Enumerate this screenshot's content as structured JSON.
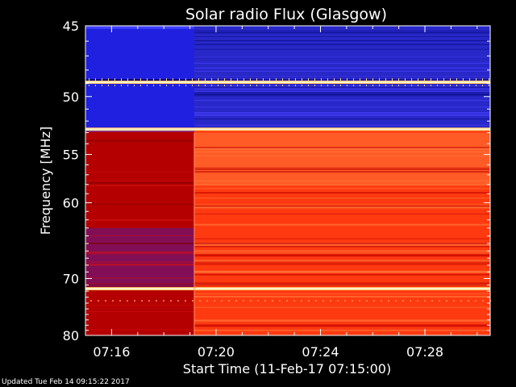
{
  "chart_data": {
    "type": "heatmap",
    "title": "Solar radio Flux (Glasgow)",
    "xlabel": "Start Time (11-Feb-17 07:15:00)",
    "ylabel": "Frequency [MHz]",
    "x_start": "07:15:00",
    "x_end": "07:30:30",
    "x_ticks": [
      "07:16",
      "07:20",
      "07:24",
      "07:28"
    ],
    "x_tick_minutes": [
      16,
      20,
      24,
      28
    ],
    "y_axis_scale": "reciprocal",
    "y_range_mhz": [
      45,
      80
    ],
    "y_ticks": [
      45,
      50,
      55,
      60,
      70,
      80
    ],
    "instrument_on_time": "07:19:10",
    "rfi_lines_mhz": [
      48.9,
      52.7,
      71.6
    ],
    "colormap": [
      "#000060",
      "#1010c0",
      "#4040ff",
      "#b00000",
      "#ff2a00",
      "#ff7a20",
      "#ffd080",
      "#ffffff"
    ]
  },
  "footer": {
    "updated": "Updated Tue Feb 14 09:15:22 2017"
  }
}
